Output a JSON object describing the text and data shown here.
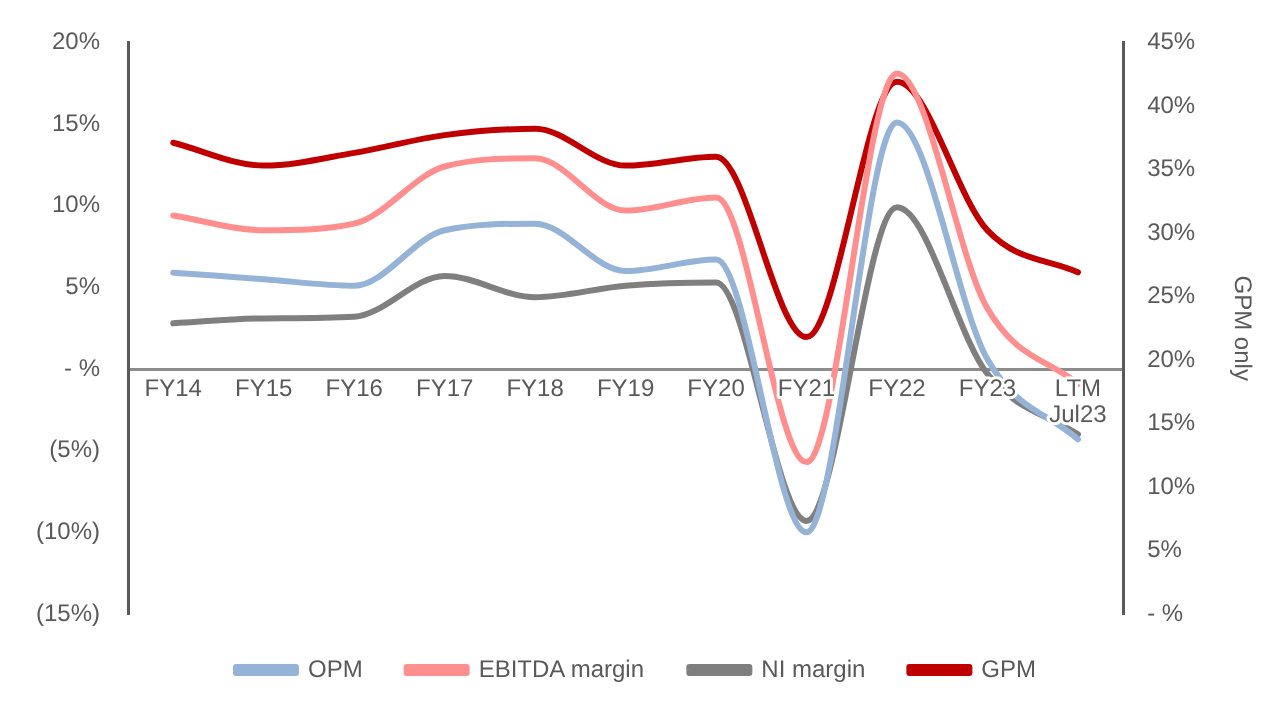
{
  "chart_data": {
    "type": "line",
    "categories": [
      "FY14",
      "FY15",
      "FY16",
      "FY17",
      "FY18",
      "FY19",
      "FY20",
      "FY21",
      "FY22",
      "FY23",
      "LTM\nJul23"
    ],
    "series": [
      {
        "name": "OPM",
        "color": "#95b3d7",
        "values": [
          5.9,
          5.5,
          5.1,
          8.5,
          8.9,
          6.0,
          6.7,
          -10.0,
          15.1,
          0.6,
          -4.3
        ]
      },
      {
        "name": "EBITDA margin",
        "color": "#ff8f8f",
        "values": [
          9.4,
          8.5,
          8.9,
          12.4,
          12.9,
          9.7,
          10.5,
          -5.7,
          18.1,
          3.7,
          -0.9
        ]
      },
      {
        "name": "NI margin",
        "color": "#7f7f7f",
        "values": [
          2.8,
          3.1,
          3.2,
          5.7,
          4.4,
          5.1,
          5.3,
          -9.3,
          9.9,
          -0.3,
          -4.0
        ]
      },
      {
        "name": "GPM",
        "color": "#c00000",
        "axis": "y2",
        "values": [
          37.1,
          35.3,
          36.3,
          37.7,
          38.2,
          35.3,
          36.0,
          21.8,
          41.9,
          30.2,
          26.9
        ]
      }
    ],
    "ylim": [
      -15,
      20
    ],
    "yticks": [
      {
        "value": -15,
        "label": "(15%)"
      },
      {
        "value": -10,
        "label": "(10%)"
      },
      {
        "value": -5,
        "label": "(5%)"
      },
      {
        "value": 0,
        "label": "- %"
      },
      {
        "value": 5,
        "label": "5%"
      },
      {
        "value": 10,
        "label": "10%"
      },
      {
        "value": 15,
        "label": "15%"
      },
      {
        "value": 20,
        "label": "20%"
      }
    ],
    "y2lim": [
      0,
      45
    ],
    "y2ticks": [
      {
        "value": 0,
        "label": "- %"
      },
      {
        "value": 5,
        "label": "5%"
      },
      {
        "value": 10,
        "label": "10%"
      },
      {
        "value": 15,
        "label": "15%"
      },
      {
        "value": 20,
        "label": "20%"
      },
      {
        "value": 25,
        "label": "25%"
      },
      {
        "value": 30,
        "label": "30%"
      },
      {
        "value": 35,
        "label": "35%"
      },
      {
        "value": 40,
        "label": "40%"
      },
      {
        "value": 45,
        "label": "45%"
      }
    ],
    "y2label": "GPM only",
    "grid": false,
    "legend": "bottom",
    "marker": "none",
    "line_style": "solid"
  }
}
